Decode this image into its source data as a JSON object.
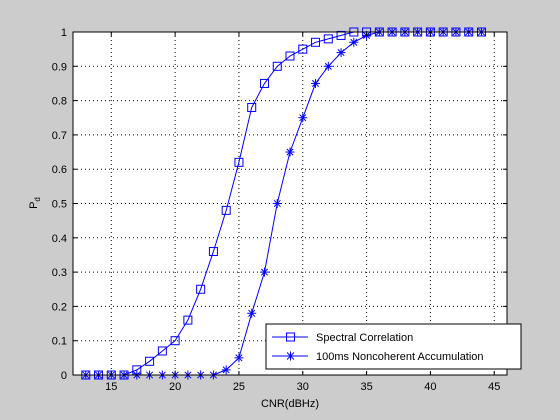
{
  "chart_data": {
    "type": "line",
    "xlabel": "CNR(dBHz)",
    "ylabel_main": "P",
    "ylabel_sub": "d",
    "xlim": [
      12,
      46
    ],
    "ylim": [
      0,
      1
    ],
    "xticks": [
      15,
      20,
      25,
      30,
      35,
      40,
      45
    ],
    "yticks": [
      0,
      0.1,
      0.2,
      0.3,
      0.4,
      0.5,
      0.6,
      0.7,
      0.8,
      0.9,
      1
    ],
    "grid": true,
    "legend_position": "bottom-right",
    "colors": {
      "series": "#0000ff",
      "axes": "#000000",
      "grid": "#000000",
      "plot_bg": "#ffffff",
      "figure_bg": "#cccccc"
    },
    "x": [
      13,
      14,
      15,
      16,
      17,
      18,
      19,
      20,
      21,
      22,
      23,
      24,
      25,
      26,
      27,
      28,
      29,
      30,
      31,
      32,
      33,
      34,
      35,
      36,
      37,
      38,
      39,
      40,
      41,
      42,
      43,
      44
    ],
    "series": [
      {
        "name": "Spectral Correlation",
        "marker": "square",
        "values": [
          0,
          0,
          0,
          0,
          0.015,
          0.04,
          0.07,
          0.1,
          0.16,
          0.25,
          0.36,
          0.48,
          0.62,
          0.78,
          0.85,
          0.9,
          0.93,
          0.95,
          0.97,
          0.98,
          0.99,
          1,
          1,
          1,
          1,
          1,
          1,
          1,
          1,
          1,
          1,
          1
        ]
      },
      {
        "name": "100ms Noncoherent Accumulation",
        "marker": "star",
        "values": [
          0,
          0,
          0,
          0,
          0,
          0,
          0,
          0,
          0,
          0,
          0,
          0.015,
          0.05,
          0.18,
          0.3,
          0.5,
          0.65,
          0.75,
          0.85,
          0.9,
          0.94,
          0.97,
          0.99,
          1,
          1,
          1,
          1,
          1,
          1,
          1,
          1,
          1
        ]
      }
    ]
  }
}
